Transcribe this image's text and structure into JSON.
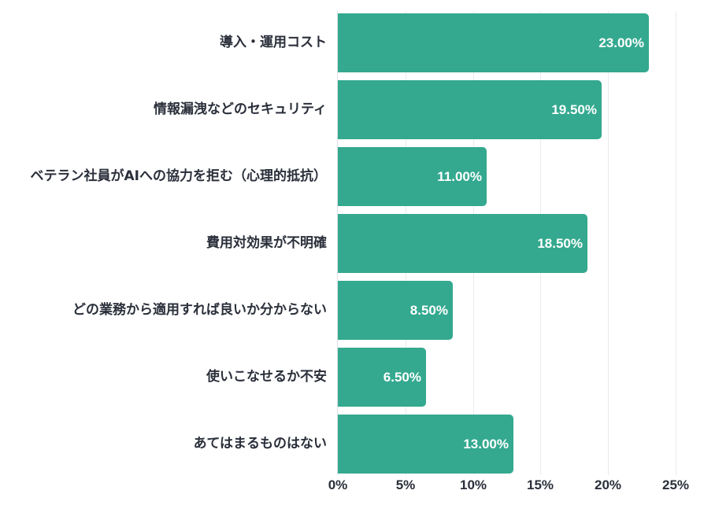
{
  "chart_data": {
    "type": "bar",
    "orientation": "horizontal",
    "title": "",
    "xlabel": "",
    "ylabel": "",
    "categories": [
      "導入・運用コスト",
      "情報漏洩などのセキュリティ",
      "ベテラン社員がAIへの協力を拒む（心理的抵抗）",
      "費用対効果が不明確",
      "どの業務から適用すれば良いか分からない",
      "使いこなせるか不安",
      "あてはまるものはない"
    ],
    "values": [
      23.0,
      19.5,
      11.0,
      18.5,
      8.5,
      6.5,
      13.0
    ],
    "value_labels": [
      "23.00%",
      "19.50%",
      "11.00%",
      "18.50%",
      "8.50%",
      "6.50%",
      "13.00%"
    ],
    "xlim": [
      0,
      25
    ],
    "x_ticks": [
      "0%",
      "5%",
      "10%",
      "15%",
      "20%",
      "25%"
    ],
    "grid": true,
    "legend": "none",
    "bar_color": "#34a98f"
  }
}
